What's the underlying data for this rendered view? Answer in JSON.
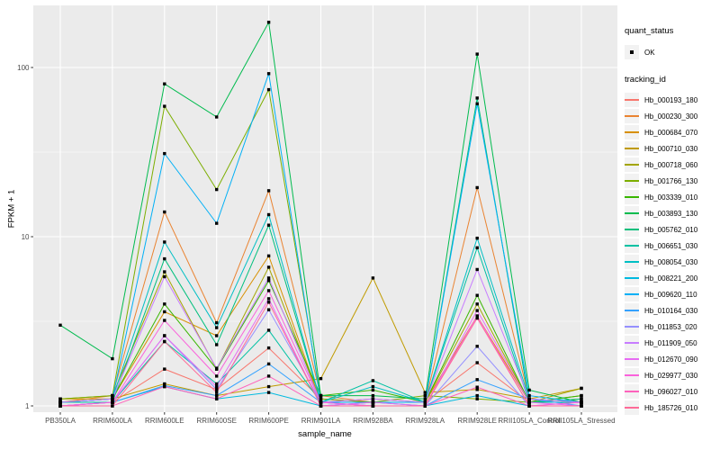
{
  "chart_data": {
    "type": "line",
    "title": "",
    "xlabel": "sample_name",
    "ylabel": "FPKM + 1",
    "y_scale": "log10",
    "y_ticks": [
      1,
      10,
      100
    ],
    "y_minor_ticks": [
      3.1623,
      31.623
    ],
    "ylim": [
      0.92,
      233
    ],
    "grid": true,
    "legend_position": "right",
    "panel_bg": "#EBEBEB",
    "grid_color": "#FFFFFF",
    "axis_text_color": "#4D4D4D",
    "tick_color": "#333333",
    "point_color": "#000000",
    "categories": [
      "PB350LA",
      "RRIM600LA",
      "RRIM600LE",
      "RRIM600SE",
      "RRIM600PE",
      "RRIM901LA",
      "RRIM928BA",
      "RRIM928LA",
      "RRIM928LE",
      "RRII105LA_Control",
      "RRII105LA_Stressed"
    ],
    "legend": {
      "quant_status": {
        "title": "quant_status",
        "items": [
          {
            "label": "OK",
            "symbol": "black-point"
          }
        ]
      },
      "tracking_id": {
        "title": "tracking_id"
      }
    },
    "series": [
      {
        "name": "Hb_000193_180",
        "color": "#F8766D",
        "values": [
          1.05,
          1.05,
          1.65,
          1.25,
          2.2,
          1.1,
          1.05,
          1.05,
          1.8,
          1.05,
          1.05
        ]
      },
      {
        "name": "Hb_000230_300",
        "color": "#EA8331",
        "values": [
          1.05,
          1.15,
          14,
          3.1,
          18.7,
          1.15,
          1.05,
          1.05,
          19.5,
          1.1,
          1.05
        ]
      },
      {
        "name": "Hb_000684_070",
        "color": "#D89000",
        "values": [
          1.1,
          1.1,
          3.6,
          2.6,
          7.7,
          1.05,
          1.05,
          1.05,
          3.4,
          1.05,
          1.1
        ]
      },
      {
        "name": "Hb_000710_030",
        "color": "#C09B00",
        "values": [
          1.05,
          1.1,
          1.35,
          1.15,
          1.3,
          1.45,
          5.7,
          1.2,
          1.25,
          1.1,
          1.27
        ]
      },
      {
        "name": "Hb_000718_060",
        "color": "#A3A500",
        "values": [
          1.1,
          1.15,
          6.2,
          1.65,
          6.6,
          1.05,
          1.1,
          1.05,
          4.0,
          1.05,
          1.27
        ]
      },
      {
        "name": "Hb_001766_130",
        "color": "#7CAE00",
        "values": [
          1.1,
          1.15,
          59,
          19,
          74,
          1.1,
          1.05,
          1.15,
          1.1,
          1.05,
          1.15
        ]
      },
      {
        "name": "Hb_003339_010",
        "color": "#39B600",
        "values": [
          1.05,
          1.1,
          4.0,
          1.65,
          5.5,
          1.15,
          1.24,
          1.05,
          4.5,
          1.05,
          1.15
        ]
      },
      {
        "name": "Hb_003893_130",
        "color": "#00BB4E",
        "values": [
          3.0,
          1.9,
          80,
          51,
          185,
          1.15,
          1.15,
          1.1,
          120,
          1.24,
          1.05
        ]
      },
      {
        "name": "Hb_005762_010",
        "color": "#00BF7D",
        "values": [
          1.05,
          1.05,
          7.4,
          2.3,
          11.7,
          1.05,
          1.05,
          1.05,
          66,
          1.05,
          1.1
        ]
      },
      {
        "name": "Hb_006651_030",
        "color": "#00C1A3",
        "values": [
          1.05,
          1.05,
          2.4,
          1.35,
          2.8,
          1.05,
          1.41,
          1.05,
          8.6,
          1.05,
          1.05
        ]
      },
      {
        "name": "Hb_008054_030",
        "color": "#00BFC4",
        "values": [
          1.05,
          1.1,
          9.3,
          2.9,
          13.5,
          1.05,
          1.3,
          1.05,
          9.8,
          1.1,
          1.05
        ]
      },
      {
        "name": "Hb_008221_200",
        "color": "#00BAE0",
        "values": [
          1.0,
          1.05,
          1.3,
          1.1,
          1.2,
          1.0,
          1.05,
          1.0,
          1.15,
          1.0,
          1.0
        ]
      },
      {
        "name": "Hb_009620_110",
        "color": "#00B0F6",
        "values": [
          1.05,
          1.1,
          31,
          12,
          92,
          1.05,
          1.05,
          1.05,
          61,
          1.15,
          1.05
        ]
      },
      {
        "name": "Hb_010164_030",
        "color": "#35A2FF",
        "values": [
          1.0,
          1.05,
          1.32,
          1.15,
          1.77,
          1.05,
          1.0,
          1.0,
          1.43,
          1.1,
          1.0
        ]
      },
      {
        "name": "Hb_011853_020",
        "color": "#9590FF",
        "values": [
          1.0,
          1.05,
          2.6,
          1.25,
          3.7,
          1.05,
          1.0,
          1.0,
          2.25,
          1.0,
          1.05
        ]
      },
      {
        "name": "Hb_011909_050",
        "color": "#C77CFF",
        "values": [
          1.05,
          1.1,
          5.8,
          1.67,
          5.7,
          1.05,
          1.1,
          1.05,
          6.4,
          1.1,
          1.05
        ]
      },
      {
        "name": "Hb_012670_090",
        "color": "#E76BF3",
        "values": [
          1.0,
          1.05,
          2.6,
          1.3,
          4.3,
          1.0,
          1.05,
          1.0,
          3.66,
          1.05,
          1.0
        ]
      },
      {
        "name": "Hb_029977_030",
        "color": "#FA62DB",
        "values": [
          1.0,
          1.05,
          3.2,
          1.5,
          4.8,
          1.05,
          1.0,
          1.0,
          3.4,
          1.0,
          1.05
        ]
      },
      {
        "name": "Hb_096027_010",
        "color": "#FF62BC",
        "values": [
          1.0,
          1.0,
          1.3,
          1.1,
          1.5,
          1.0,
          1.0,
          1.0,
          1.29,
          1.0,
          1.0
        ]
      },
      {
        "name": "Hb_185726_010",
        "color": "#FF6A98",
        "values": [
          1.0,
          1.0,
          2.4,
          1.2,
          4.1,
          1.0,
          1.0,
          1.0,
          3.3,
          1.0,
          1.0
        ]
      }
    ]
  }
}
